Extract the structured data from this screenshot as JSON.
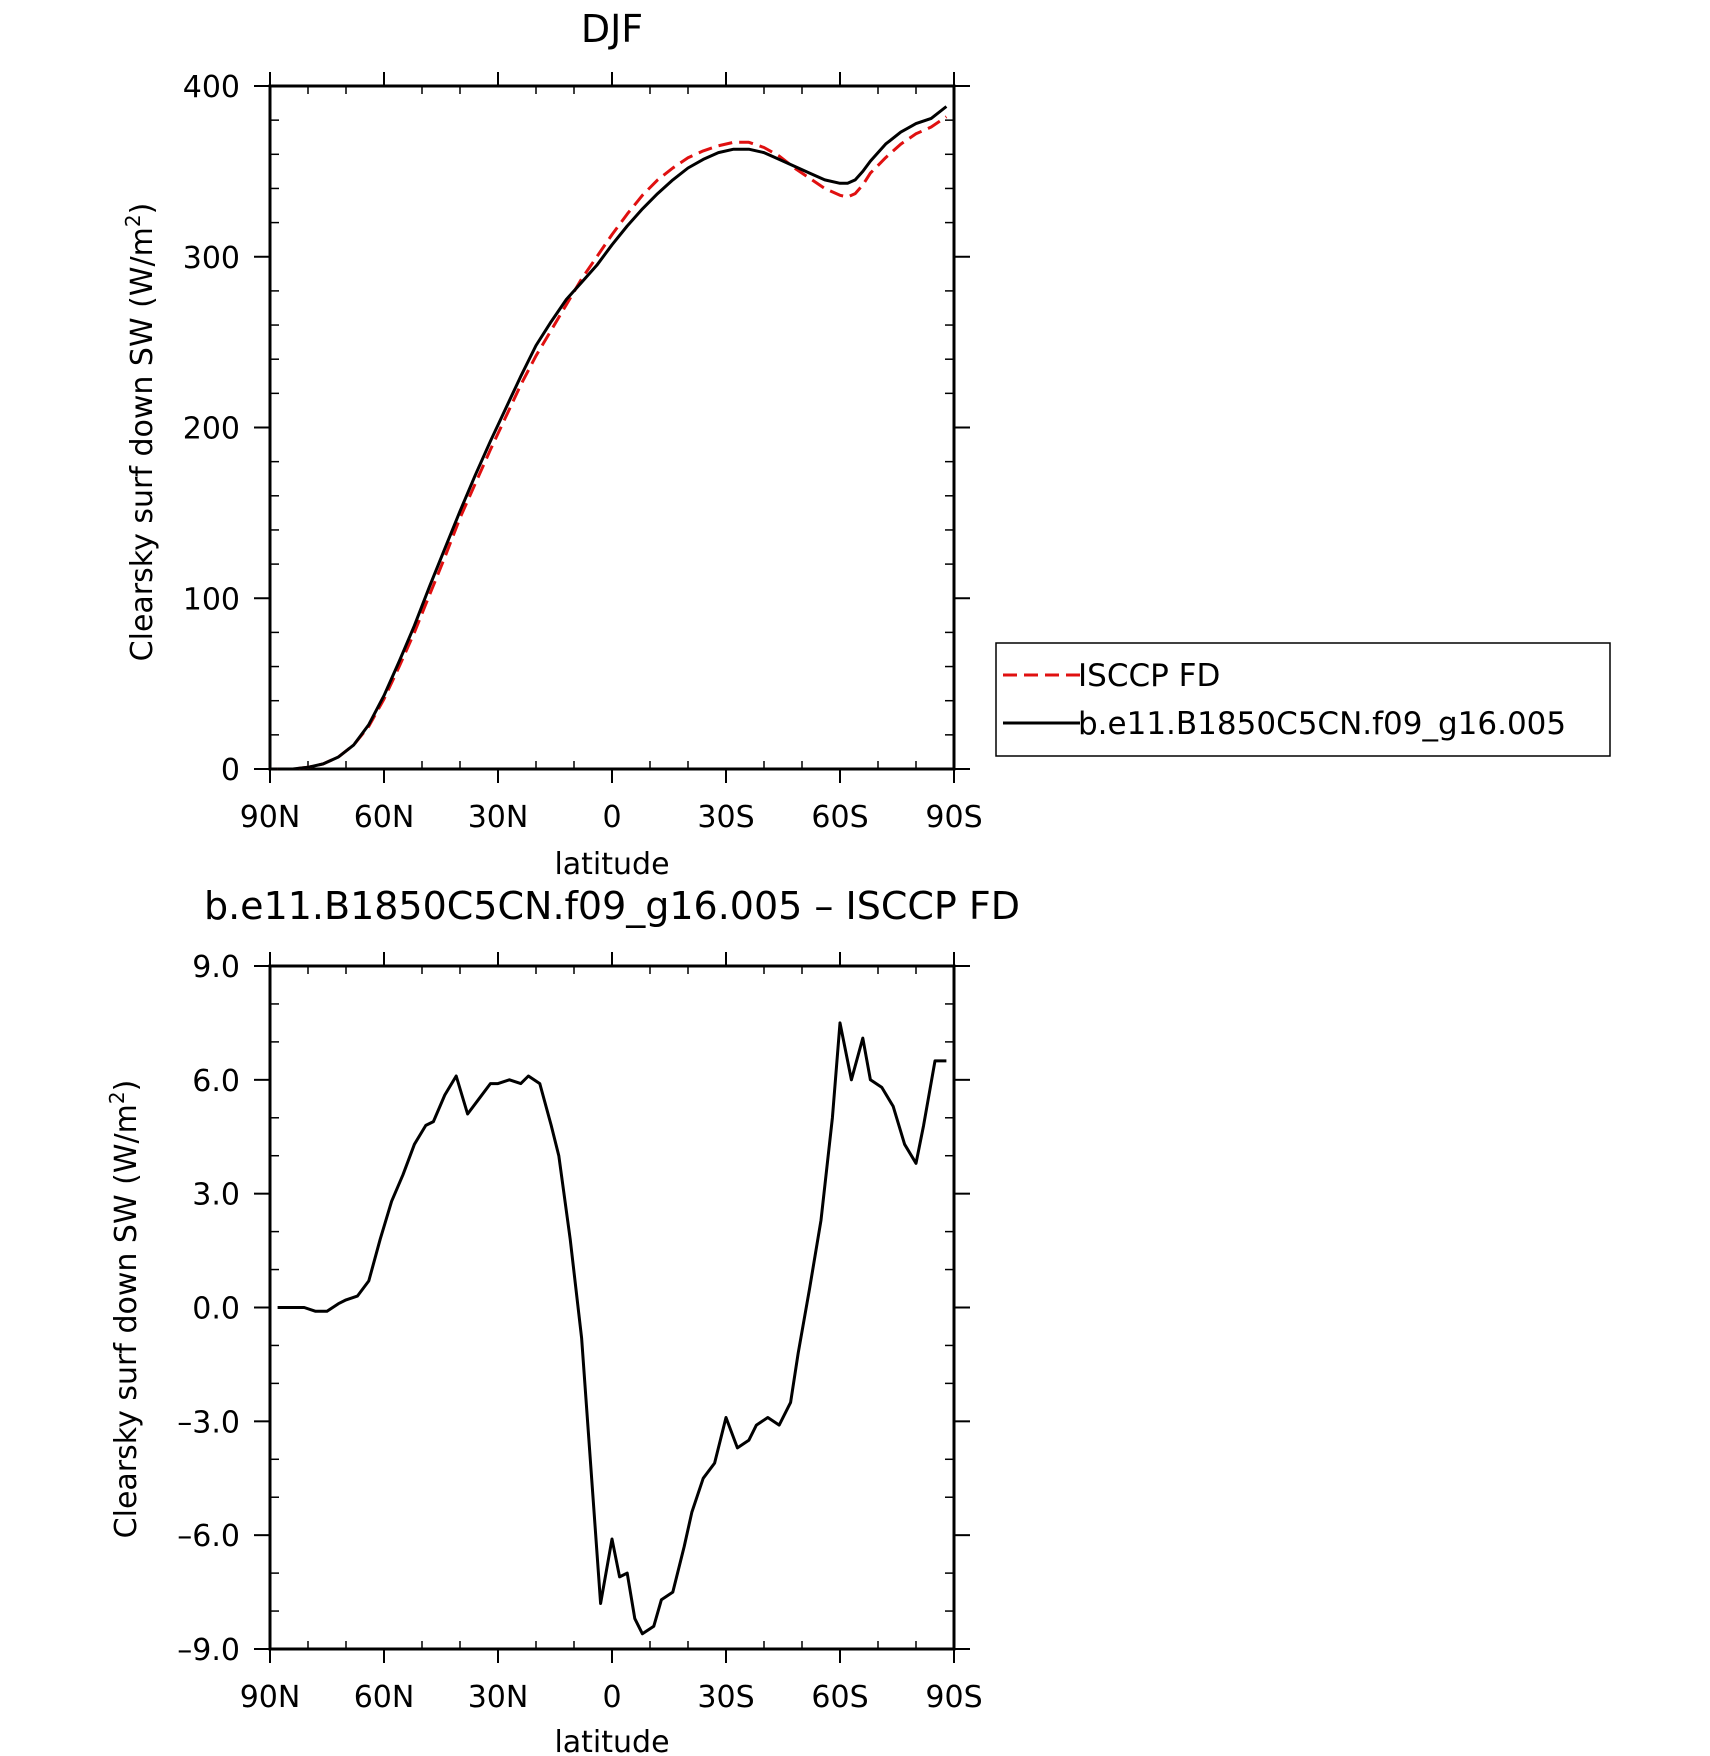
{
  "chart_data": [
    {
      "type": "line",
      "title": "DJF",
      "xlabel": "latitude",
      "ylabel_main": "Clearsky surf down SW (W/m",
      "ylabel_sup": "2",
      "ylabel_end": ")",
      "x_axis": {
        "range": [
          90,
          -90
        ],
        "ticks": [
          90,
          60,
          30,
          0,
          -30,
          -60,
          -90
        ],
        "tick_labels": [
          "90N",
          "60N",
          "30N",
          "0",
          "30S",
          "60S",
          "90S"
        ]
      },
      "y_axis": {
        "range": [
          0,
          400
        ],
        "ticks": [
          0,
          100,
          200,
          300,
          400
        ],
        "tick_labels": [
          "0",
          "100",
          "200",
          "300",
          "400"
        ]
      },
      "legend": {
        "placement": "right"
      },
      "series": [
        {
          "name": "ISCCP FD",
          "color": "#e01010",
          "dash": "dashed",
          "x": [
            88,
            84,
            80,
            76,
            72,
            68,
            64,
            60,
            56,
            52,
            48,
            44,
            40,
            36,
            32,
            28,
            24,
            20,
            16,
            12,
            8,
            4,
            0,
            -4,
            -8,
            -12,
            -16,
            -20,
            -24,
            -28,
            -32,
            -36,
            -40,
            -44,
            -48,
            -52,
            -56,
            -60,
            -62,
            -64,
            -66,
            -68,
            -72,
            -76,
            -80,
            -84,
            -88
          ],
          "y": [
            0,
            0,
            1,
            3,
            7,
            14,
            25,
            41,
            60,
            80,
            102,
            124,
            147,
            167,
            187,
            206,
            225,
            242,
            257,
            272,
            287,
            300,
            313,
            325,
            336,
            345,
            352,
            358,
            362,
            365,
            367,
            367,
            364,
            359,
            352,
            346,
            340,
            336,
            335,
            337,
            342,
            349,
            358,
            366,
            372,
            376,
            382
          ]
        },
        {
          "name": "b.e11.B1850C5CN.f09_g16.005",
          "color": "#000000",
          "dash": "solid",
          "x": [
            88,
            84,
            80,
            76,
            72,
            68,
            64,
            60,
            56,
            52,
            48,
            44,
            40,
            36,
            32,
            28,
            24,
            20,
            16,
            12,
            8,
            4,
            0,
            -4,
            -8,
            -12,
            -16,
            -20,
            -24,
            -28,
            -32,
            -36,
            -40,
            -44,
            -48,
            -52,
            -56,
            -60,
            -62,
            -64,
            -66,
            -68,
            -72,
            -76,
            -80,
            -84,
            -88
          ],
          "y": [
            0,
            0,
            1,
            3,
            7,
            14,
            26,
            43,
            63,
            84,
            107,
            129,
            151,
            172,
            192,
            211,
            230,
            248,
            262,
            275,
            285,
            295,
            307,
            318,
            328,
            337,
            345,
            352,
            357,
            361,
            363,
            363,
            361,
            357,
            353,
            349,
            345,
            343,
            343,
            345,
            350,
            356,
            366,
            373,
            378,
            381,
            388
          ]
        }
      ]
    },
    {
      "type": "line",
      "title": "b.e11.B1850C5CN.f09_g16.005 – ISCCP FD",
      "xlabel": "latitude",
      "ylabel_main": "Clearsky surf down SW (W/m",
      "ylabel_sup": "2",
      "ylabel_end": ")",
      "x_axis": {
        "range": [
          90,
          -90
        ],
        "ticks": [
          90,
          60,
          30,
          0,
          -30,
          -60,
          -90
        ],
        "tick_labels": [
          "90N",
          "60N",
          "30N",
          "0",
          "30S",
          "60S",
          "90S"
        ]
      },
      "y_axis": {
        "range": [
          -9,
          9
        ],
        "ticks": [
          9,
          6,
          3,
          0,
          -3,
          -6,
          -9
        ],
        "tick_labels": [
          "9.0",
          "6.0",
          "3.0",
          "0.0",
          "–3.0",
          "–6.0",
          "–9.0"
        ]
      },
      "series": [
        {
          "color": "#000000",
          "dash": "solid",
          "x": [
            88,
            84,
            81,
            78,
            75,
            72,
            70,
            67,
            64,
            61,
            58,
            55,
            52,
            49,
            47,
            44,
            41,
            38,
            35,
            32,
            30,
            27,
            24,
            22,
            19,
            16,
            14,
            11,
            8,
            5,
            3,
            0,
            -2,
            -4,
            -6,
            -8,
            -11,
            -13,
            -16,
            -19,
            -21,
            -24,
            -27,
            -30,
            -33,
            -36,
            -38,
            -41,
            -44,
            -47,
            -49,
            -52,
            -55,
            -58,
            -60,
            -63,
            -66,
            -68,
            -71,
            -74,
            -77,
            -80,
            -82,
            -85,
            -88
          ],
          "y": [
            0,
            0,
            0,
            -0.1,
            -0.1,
            0.1,
            0.2,
            0.3,
            0.7,
            1.8,
            2.8,
            3.5,
            4.3,
            4.8,
            4.9,
            5.6,
            6.1,
            5.1,
            5.5,
            5.9,
            5.9,
            6.0,
            5.9,
            6.1,
            5.9,
            4.8,
            4.0,
            1.8,
            -0.8,
            -5.0,
            -7.8,
            -6.1,
            -7.1,
            -7.0,
            -8.2,
            -8.6,
            -8.4,
            -7.7,
            -7.5,
            -6.3,
            -5.4,
            -4.5,
            -4.1,
            -2.9,
            -3.7,
            -3.5,
            -3.1,
            -2.9,
            -3.1,
            -2.5,
            -1.2,
            0.5,
            2.3,
            5.0,
            7.5,
            6.0,
            7.1,
            6.0,
            5.8,
            5.3,
            4.3,
            3.8,
            4.8,
            6.5,
            6.5
          ]
        }
      ]
    }
  ]
}
